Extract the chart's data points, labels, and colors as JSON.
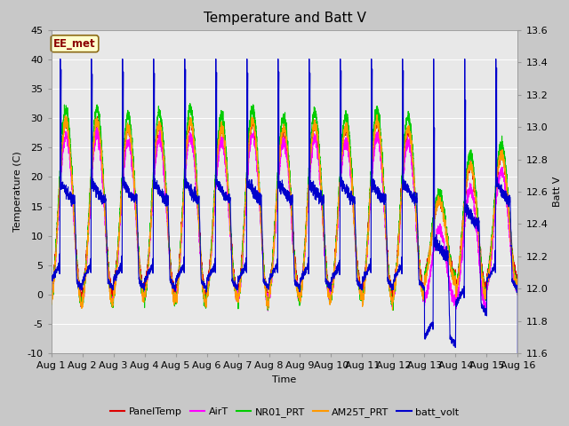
{
  "title": "Temperature and Batt V",
  "xlabel": "Time",
  "ylabel_left": "Temperature (C)",
  "ylabel_right": "Batt V",
  "annotation": "EE_met",
  "ylim_left": [
    -10,
    45
  ],
  "ylim_right": [
    11.6,
    13.6
  ],
  "xlim": [
    0,
    15
  ],
  "xtick_labels": [
    "Aug 1",
    "Aug 2",
    "Aug 3",
    "Aug 4",
    "Aug 5",
    "Aug 6",
    "Aug 7",
    "Aug 8",
    "Aug 9",
    "Aug 10",
    "Aug 11",
    "Aug 12",
    "Aug 13",
    "Aug 14",
    "Aug 15",
    "Aug 16"
  ],
  "ytick_left": [
    -10,
    -5,
    0,
    5,
    10,
    15,
    20,
    25,
    30,
    35,
    40,
    45
  ],
  "ytick_right": [
    11.6,
    11.8,
    12.0,
    12.2,
    12.4,
    12.6,
    12.8,
    13.0,
    13.2,
    13.4,
    13.6
  ],
  "colors": {
    "PanelTemp": "#dd0000",
    "AirT": "#ff00ff",
    "NR01_PRT": "#00cc00",
    "AM25T_PRT": "#ff9900",
    "batt_volt": "#0000cc"
  },
  "fig_bg_color": "#c8c8c8",
  "plot_bg_color": "#e8e8e8",
  "grid_color": "#ffffff",
  "title_fontsize": 11,
  "axis_fontsize": 8,
  "tick_fontsize": 8
}
